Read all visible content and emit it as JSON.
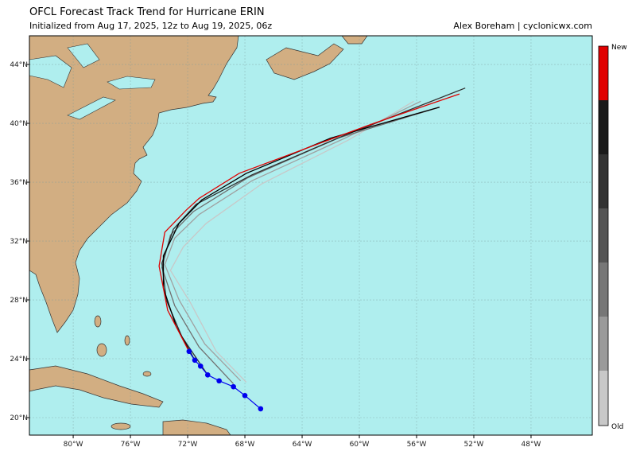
{
  "chart_data": {
    "type": "map",
    "title": "OFCL Forecast Track Trend for Hurricane ERIN",
    "subtitle": "Initialized from Aug 17, 2025, 12z to Aug 19, 2025, 06z",
    "credit": "Alex Boreham | cyclonicwx.com",
    "xlim": [
      -83.06,
      -43.72
    ],
    "ylim": [
      18.81,
      45.95
    ],
    "xticks": [
      {
        "value": -80,
        "label": "80°W"
      },
      {
        "value": -76,
        "label": "76°W"
      },
      {
        "value": -72,
        "label": "72°W"
      },
      {
        "value": -68,
        "label": "68°W"
      },
      {
        "value": -64,
        "label": "64°W"
      },
      {
        "value": -60,
        "label": "60°W"
      },
      {
        "value": -56,
        "label": "56°W"
      },
      {
        "value": -52,
        "label": "52°W"
      },
      {
        "value": -48,
        "label": "48°W"
      }
    ],
    "yticks": [
      {
        "value": 20,
        "label": "20°N"
      },
      {
        "value": 24,
        "label": "24°N"
      },
      {
        "value": 28,
        "label": "28°N"
      },
      {
        "value": 32,
        "label": "32°N"
      },
      {
        "value": 36,
        "label": "36°N"
      },
      {
        "value": 40,
        "label": "40°N"
      },
      {
        "value": 44,
        "label": "44°N"
      }
    ],
    "grid": true,
    "colorbar": {
      "top_label": "New",
      "bottom_label": "Old"
    },
    "series": [
      {
        "color": "#c8c8c8",
        "x": [
          -67.9,
          -70.0,
          -71.8,
          -73.2,
          -72.3,
          -70.7,
          -66.8,
          -60.7,
          -56.2
        ],
        "values": [
          22.4,
          24.5,
          27.8,
          30.0,
          31.6,
          33.2,
          35.9,
          38.9,
          41.5
        ]
      },
      {
        "color": "#a0a0a0",
        "x": [
          -68.3,
          -70.8,
          -72.6,
          -73.6,
          -72.9,
          -71.2,
          -67.5,
          -61.0,
          -55.7
        ],
        "values": [
          22.5,
          25.0,
          28.0,
          30.4,
          32.2,
          33.8,
          36.1,
          39.0,
          41.5
        ]
      },
      {
        "color": "#707070",
        "x": [
          -68.8,
          -71.2,
          -72.9,
          -73.8,
          -73.2,
          -71.6,
          -67.8,
          -61.5,
          -54.4
        ],
        "values": [
          22.3,
          24.8,
          27.6,
          30.2,
          32.4,
          34.0,
          36.3,
          39.0,
          41.1
        ]
      },
      {
        "color": "#303030",
        "x": [
          -70.6,
          -72.4,
          -73.5,
          -73.8,
          -73.0,
          -71.4,
          -67.5,
          -61.0,
          -52.6
        ],
        "values": [
          22.9,
          25.5,
          28.0,
          30.5,
          32.8,
          34.5,
          36.5,
          39.2,
          42.4
        ]
      },
      {
        "color": "#000000",
        "x": [
          -71.5,
          -72.8,
          -73.7,
          -73.7,
          -72.6,
          -71.0,
          -67.9,
          -62.0,
          -54.4
        ],
        "values": [
          23.9,
          26.2,
          28.8,
          31.0,
          33.2,
          34.8,
          36.6,
          39.0,
          41.1
        ]
      },
      {
        "color": "#e00000",
        "x": [
          -71.9,
          -73.4,
          -74.0,
          -73.6,
          -72.1,
          -71.2,
          -68.4,
          -62.9,
          -59.0,
          -53.0
        ],
        "values": [
          24.5,
          27.3,
          30.3,
          32.6,
          34.1,
          34.9,
          36.6,
          38.6,
          40.0,
          42.0
        ]
      }
    ],
    "observed": {
      "color": "#0000ee",
      "x": [
        -66.9,
        -68.0,
        -68.8,
        -69.8,
        -70.6,
        -71.1,
        -71.5,
        -71.9
      ],
      "values": [
        20.6,
        21.5,
        22.1,
        22.5,
        22.9,
        23.5,
        23.9,
        24.5
      ]
    }
  }
}
